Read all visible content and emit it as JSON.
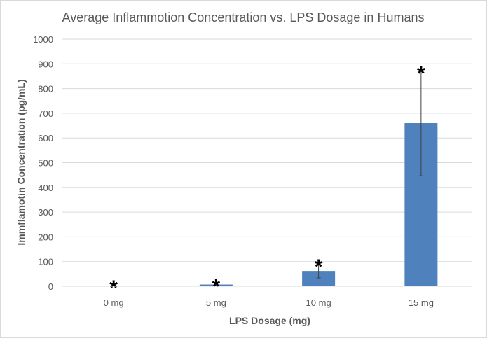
{
  "chart_data": {
    "type": "bar",
    "title": "Average Inflammotion Concentration vs. LPS Dosage in Humans",
    "xlabel": "LPS Dosage (mg)",
    "ylabel": "Immflamotin Concentration (pg/mL)",
    "categories": [
      "0 mg",
      "5 mg",
      "10 mg",
      "15 mg"
    ],
    "values": [
      1,
      7,
      62,
      660
    ],
    "error": [
      5,
      3,
      28,
      213
    ],
    "annotations": [
      "*",
      "*",
      "*",
      "*"
    ],
    "ylim": [
      0,
      1000
    ],
    "yticks": [
      "0",
      "100",
      "200",
      "300",
      "400",
      "500",
      "600",
      "700",
      "800",
      "900",
      "1000"
    ],
    "grid": true,
    "legend": "none",
    "bar_color": "#4f81bd"
  }
}
